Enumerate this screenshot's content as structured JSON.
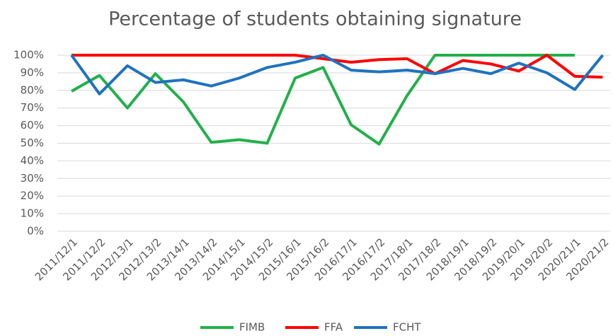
{
  "chart_data": {
    "type": "line",
    "title": "Percentage of students obtaining signature",
    "categories": [
      "2011/12/1",
      "2011/12/2",
      "2012/13/1",
      "2012/13/2",
      "2013/14/1",
      "2013/14/2",
      "2014/15/1",
      "2014/15/2",
      "2015/16/1",
      "2015/16/2",
      "2016/17/1",
      "2016/17/2",
      "2017/18/1",
      "2017/18/2",
      "2018/19/1",
      "2018/19/2",
      "2019/20/1",
      "2019/20/2",
      "2020/21/1",
      "2020/21/2"
    ],
    "series": [
      {
        "name": "FIMB",
        "color": "#22b04b",
        "values": [
          79.5,
          88.5,
          70,
          89.5,
          73.5,
          50.5,
          52,
          50,
          87,
          93,
          60.5,
          49.5,
          77,
          100,
          100,
          100,
          100,
          100,
          100,
          null
        ]
      },
      {
        "name": "FFA",
        "color": "#ff0000",
        "values": [
          100,
          100,
          100,
          100,
          100,
          100,
          100,
          100,
          100,
          98,
          96,
          97.5,
          98,
          89.5,
          97,
          95,
          91,
          100,
          88,
          87.5
        ]
      },
      {
        "name": "FCHT",
        "color": "#1f72bf",
        "values": [
          100,
          78,
          94,
          84.5,
          86,
          82.5,
          87,
          93,
          96,
          100,
          91.5,
          90.5,
          91.5,
          89.5,
          92.5,
          89.5,
          95.5,
          90,
          80.5,
          100
        ]
      }
    ],
    "ylim": [
      0,
      100
    ],
    "yticks": [
      {
        "value": 0,
        "label": "0%"
      },
      {
        "value": 10,
        "label": "10%"
      },
      {
        "value": 20,
        "label": "20%"
      },
      {
        "value": 30,
        "label": "30%"
      },
      {
        "value": 40,
        "label": "40%"
      },
      {
        "value": 50,
        "label": "50%"
      },
      {
        "value": 60,
        "label": "60%"
      },
      {
        "value": 70,
        "label": "70%"
      },
      {
        "value": 80,
        "label": "80%"
      },
      {
        "value": 90,
        "label": "90%"
      },
      {
        "value": 100,
        "label": "100%"
      }
    ],
    "grid": true,
    "legend": "bottom"
  }
}
